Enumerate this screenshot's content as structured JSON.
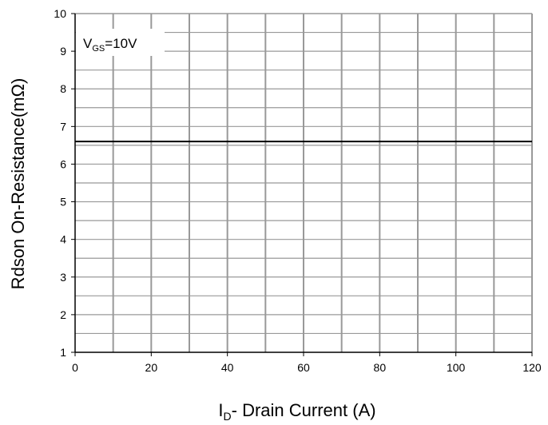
{
  "chart_data": {
    "type": "line",
    "xlabel": {
      "main": "I",
      "sub": "D",
      "rest": "- Drain Current (A)"
    },
    "ylabel": "Rdson On-Resistance(mΩ)",
    "xlim": [
      0,
      120
    ],
    "ylim": [
      1,
      10
    ],
    "x_ticks": [
      0,
      20,
      40,
      60,
      80,
      100,
      120
    ],
    "y_ticks": [
      1,
      2,
      3,
      4,
      5,
      6,
      7,
      8,
      9,
      10
    ],
    "x_minor_step": 10,
    "y_minor_step": 0.5,
    "grid": true,
    "annotation": {
      "main": "V",
      "sub": "GS",
      "rest": "=10V"
    },
    "series": [
      {
        "x": [
          0,
          120
        ],
        "y": [
          6.6,
          6.6
        ]
      }
    ],
    "colors": {
      "line": "#000000",
      "grid": "#999999",
      "axis": "#000000"
    }
  }
}
